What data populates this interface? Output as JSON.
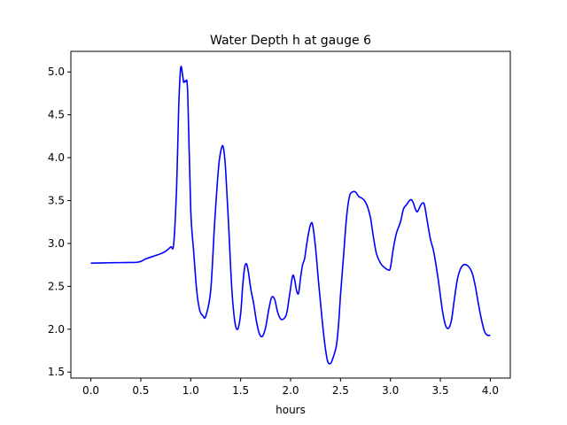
{
  "chart_data": {
    "type": "line",
    "title": "Water Depth h at gauge 6",
    "xlabel": "hours",
    "ylabel": "",
    "xlim": [
      -0.2,
      4.2
    ],
    "ylim": [
      1.43,
      5.24
    ],
    "x_ticks": [
      0.0,
      0.5,
      1.0,
      1.5,
      2.0,
      2.5,
      3.0,
      3.5,
      4.0
    ],
    "x_tick_labels": [
      "0.0",
      "0.5",
      "1.0",
      "1.5",
      "2.0",
      "2.5",
      "3.0",
      "3.5",
      "4.0"
    ],
    "y_ticks": [
      1.5,
      2.0,
      2.5,
      3.0,
      3.5,
      4.0,
      4.5,
      5.0
    ],
    "y_tick_labels": [
      "1.5",
      "2.0",
      "2.5",
      "3.0",
      "3.5",
      "4.0",
      "4.5",
      "5.0"
    ],
    "grid": false,
    "legend": "none",
    "series": [
      {
        "color": "#0000ff",
        "x": [
          0.0,
          0.2,
          0.4,
          0.46,
          0.5,
          0.55,
          0.6,
          0.65,
          0.7,
          0.75,
          0.8,
          0.83,
          0.86,
          0.88,
          0.9,
          0.92,
          0.93,
          0.95,
          0.97,
          1.0,
          1.03,
          1.06,
          1.09,
          1.12,
          1.15,
          1.2,
          1.24,
          1.28,
          1.31,
          1.33,
          1.35,
          1.38,
          1.41,
          1.44,
          1.47,
          1.5,
          1.52,
          1.54,
          1.56,
          1.58,
          1.6,
          1.63,
          1.66,
          1.69,
          1.72,
          1.75,
          1.78,
          1.81,
          1.84,
          1.87,
          1.9,
          1.93,
          1.96,
          1.99,
          2.02,
          2.04,
          2.06,
          2.08,
          2.1,
          2.12,
          2.14,
          2.16,
          2.18,
          2.2,
          2.22,
          2.25,
          2.28,
          2.31,
          2.34,
          2.37,
          2.4,
          2.42,
          2.44,
          2.46,
          2.48,
          2.5,
          2.53,
          2.56,
          2.59,
          2.62,
          2.65,
          2.68,
          2.71,
          2.74,
          2.77,
          2.8,
          2.83,
          2.86,
          2.9,
          2.94,
          2.98,
          3.0,
          3.03,
          3.06,
          3.1,
          3.13,
          3.16,
          3.19,
          3.21,
          3.23,
          3.25,
          3.27,
          3.3,
          3.32,
          3.34,
          3.37,
          3.4,
          3.43,
          3.46,
          3.49,
          3.52,
          3.55,
          3.58,
          3.61,
          3.64,
          3.67,
          3.7,
          3.73,
          3.76,
          3.79,
          3.82,
          3.85,
          3.88,
          3.91,
          3.94,
          3.97,
          4.0
        ],
        "y": [
          2.77,
          2.775,
          2.778,
          2.78,
          2.79,
          2.82,
          2.84,
          2.86,
          2.88,
          2.91,
          2.96,
          3.0,
          3.7,
          4.6,
          5.05,
          4.95,
          4.88,
          4.89,
          4.75,
          3.4,
          2.9,
          2.45,
          2.22,
          2.16,
          2.15,
          2.45,
          3.25,
          3.9,
          4.12,
          4.1,
          3.85,
          3.2,
          2.5,
          2.1,
          2.0,
          2.18,
          2.5,
          2.72,
          2.76,
          2.65,
          2.48,
          2.3,
          2.08,
          1.94,
          1.92,
          2.02,
          2.22,
          2.37,
          2.35,
          2.2,
          2.12,
          2.12,
          2.18,
          2.4,
          2.62,
          2.58,
          2.45,
          2.42,
          2.6,
          2.75,
          2.82,
          2.98,
          3.12,
          3.22,
          3.22,
          2.95,
          2.55,
          2.18,
          1.85,
          1.63,
          1.6,
          1.65,
          1.72,
          1.82,
          2.05,
          2.4,
          2.85,
          3.3,
          3.55,
          3.6,
          3.6,
          3.55,
          3.53,
          3.5,
          3.43,
          3.3,
          3.07,
          2.88,
          2.77,
          2.72,
          2.69,
          2.72,
          2.95,
          3.12,
          3.25,
          3.4,
          3.45,
          3.5,
          3.51,
          3.47,
          3.4,
          3.37,
          3.44,
          3.47,
          3.45,
          3.25,
          3.05,
          2.92,
          2.72,
          2.48,
          2.22,
          2.05,
          2.01,
          2.1,
          2.35,
          2.58,
          2.7,
          2.75,
          2.75,
          2.72,
          2.65,
          2.5,
          2.3,
          2.12,
          1.98,
          1.93,
          1.93
        ]
      }
    ]
  }
}
